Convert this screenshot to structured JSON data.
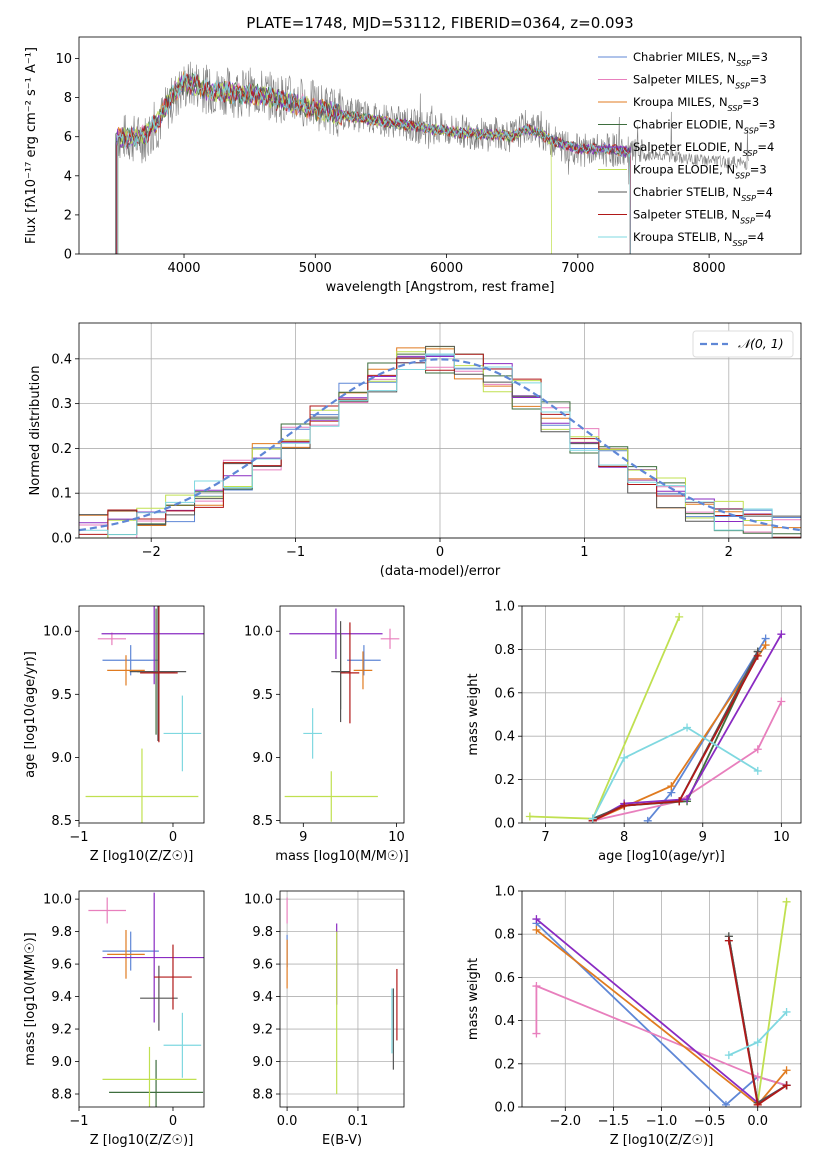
{
  "figure": {
    "title": "PLATE=1748, MJD=53112, FIBERID=0364, z=0.093"
  },
  "series_styles": [
    {
      "name": "Chabrier MILES",
      "nssp": "3",
      "color": "#5f87d6"
    },
    {
      "name": "Salpeter MILES",
      "nssp": "3",
      "color": "#e87fbd"
    },
    {
      "name": "Kroupa MILES",
      "nssp": "3",
      "color": "#e07b20"
    },
    {
      "name": "Chabrier ELODIE",
      "nssp": "3",
      "color": "#3e6e3e"
    },
    {
      "name": "Salpeter ELODIE",
      "nssp": "4",
      "color": "#8a2bc2"
    },
    {
      "name": "Kroupa ELODIE",
      "nssp": "3",
      "color": "#c0e050"
    },
    {
      "name": "Chabrier STELIB",
      "nssp": "4",
      "color": "#555555"
    },
    {
      "name": "Salpeter STELIB",
      "nssp": "4",
      "color": "#b01818"
    },
    {
      "name": "Kroupa STELIB",
      "nssp": "4",
      "color": "#7fd8e0"
    }
  ],
  "chart_data": [
    {
      "id": "spectrum",
      "type": "line",
      "title": "",
      "xlabel": "wavelength [Angstrom, rest frame]",
      "ylabel": "Flux [fλ10⁻¹⁷ erg cm⁻² s⁻¹ A⁻¹]",
      "xlim": [
        3200,
        8700
      ],
      "ylim": [
        0,
        11.1
      ],
      "xticks": [
        4000,
        5000,
        6000,
        7000,
        8000
      ],
      "yticks": [
        0,
        2,
        4,
        6,
        8,
        10
      ],
      "grid": false,
      "legend_position": "top-right",
      "legend_entries": [
        "Chabrier MILES, NSSP=3",
        "Salpeter MILES, NSSP=3",
        "Kroupa MILES, NSSP=3",
        "Chabrier ELODIE, NSSP=3",
        "Salpeter ELODIE, NSSP=4",
        "Kroupa ELODIE, NSSP=3",
        "Chabrier STELIB, NSSP=4",
        "Salpeter STELIB, NSSP=4",
        "Kroupa STELIB, NSSP=4"
      ],
      "data_series": {
        "name": "data",
        "color": "#808080",
        "x": [
          3500,
          3600,
          3700,
          3800,
          3900,
          4000,
          4100,
          4200,
          4300,
          4400,
          4500,
          4600,
          4700,
          4800,
          4900,
          5000,
          5100,
          5200,
          5300,
          5400,
          5500,
          5600,
          5700,
          5800,
          5900,
          6000,
          6100,
          6200,
          6300,
          6400,
          6500,
          6600,
          6700,
          6800,
          6900,
          7000,
          7100,
          7200,
          7300,
          7400,
          7500,
          7600,
          7700,
          7800,
          7900,
          8000,
          8100,
          8200,
          8300
        ],
        "y": [
          6.0,
          5.9,
          5.9,
          6.6,
          7.8,
          8.6,
          8.7,
          8.3,
          8.4,
          8.2,
          8.3,
          8.2,
          8.0,
          7.9,
          7.8,
          7.6,
          7.4,
          7.2,
          7.1,
          7.0,
          6.9,
          6.8,
          6.6,
          6.5,
          6.4,
          6.3,
          6.3,
          6.2,
          6.1,
          6.2,
          6.0,
          6.5,
          6.3,
          5.8,
          5.5,
          5.3,
          5.3,
          5.3,
          5.3,
          5.1,
          5.0,
          5.1,
          5.0,
          4.9,
          4.8,
          4.8,
          4.7,
          4.7,
          4.6
        ]
      },
      "model_series": {
        "x": [
          3480,
          3600,
          3700,
          3800,
          3900,
          4000,
          4100,
          4200,
          4300,
          4400,
          4500,
          4600,
          4700,
          4800,
          4900,
          5000,
          5100,
          5200,
          5300,
          5400,
          5500,
          5600,
          5700,
          5800,
          5900,
          6000,
          6100,
          6200,
          6300,
          6400,
          6500,
          6600,
          6700,
          6800,
          6900,
          7000,
          7100,
          7200,
          7300,
          7400
        ],
        "y": [
          6.0,
          5.9,
          6.1,
          6.8,
          8.0,
          8.8,
          8.6,
          8.3,
          8.3,
          8.2,
          8.2,
          8.1,
          7.9,
          7.8,
          7.6,
          7.4,
          7.3,
          7.1,
          7.0,
          6.9,
          6.8,
          6.7,
          6.6,
          6.5,
          6.4,
          6.3,
          6.2,
          6.2,
          6.1,
          6.1,
          6.0,
          6.4,
          6.2,
          5.8,
          5.6,
          5.4,
          5.4,
          5.4,
          5.3,
          5.2
        ]
      }
    },
    {
      "id": "residuals",
      "type": "line",
      "title": "",
      "xlabel": "(data-model)/error",
      "ylabel": "Normed distribution",
      "xlim": [
        -2.5,
        2.5
      ],
      "ylim": [
        0,
        0.48
      ],
      "xticks": [
        -2,
        -1,
        0,
        1,
        2
      ],
      "yticks": [
        0.0,
        0.1,
        0.2,
        0.3,
        0.4
      ],
      "grid": true,
      "legend_position": "top-right",
      "legend_entries": [
        "𝒩(0, 1)"
      ],
      "bin_edges": [
        -2.5,
        -2.3,
        -2.1,
        -1.9,
        -1.7,
        -1.5,
        -1.3,
        -1.1,
        -0.9,
        -0.7,
        -0.5,
        -0.3,
        -0.1,
        0.1,
        0.3,
        0.5,
        0.7,
        0.9,
        1.1,
        1.3,
        1.5,
        1.7,
        1.9,
        2.1,
        2.3,
        2.5
      ],
      "hist_values": [
        0.02,
        0.03,
        0.05,
        0.07,
        0.1,
        0.14,
        0.18,
        0.22,
        0.27,
        0.32,
        0.36,
        0.39,
        0.4,
        0.39,
        0.36,
        0.32,
        0.27,
        0.22,
        0.17,
        0.13,
        0.1,
        0.07,
        0.05,
        0.03,
        0.02
      ],
      "normal_curve": {
        "name": "𝒩(0, 1)",
        "color": "#5f87d6",
        "dashed": true
      }
    },
    {
      "id": "age-vs-z",
      "type": "scatter",
      "xlabel": "Z [log10(Z/Z☉)]",
      "ylabel": "age [log10(age/yr)]",
      "xlim": [
        -1.0,
        0.33
      ],
      "ylim": [
        8.48,
        10.2
      ],
      "xticks": [
        -1,
        0
      ],
      "yticks": [
        8.5,
        9.0,
        9.5,
        10.0
      ],
      "grid": false,
      "points": [
        {
          "x": -0.45,
          "y": 9.77,
          "xerr": 0.3,
          "yerr": 0.12,
          "color": "#5f87d6"
        },
        {
          "x": -0.65,
          "y": 9.94,
          "xerr": 0.15,
          "yerr": 0.05,
          "color": "#e87fbd"
        },
        {
          "x": -0.5,
          "y": 9.69,
          "xerr": 0.2,
          "yerr": 0.12,
          "color": "#e07b20"
        },
        {
          "x": -0.18,
          "y": 9.68,
          "xerr": 0.2,
          "yerr": 0.5,
          "color": "#3e6e3e"
        },
        {
          "x": -0.2,
          "y": 9.98,
          "xerr": 0.56,
          "yerr": 0.4,
          "color": "#8a2bc2"
        },
        {
          "x": -0.33,
          "y": 8.69,
          "xerr": 0.6,
          "yerr": 0.38,
          "color": "#c0e050"
        },
        {
          "x": -0.16,
          "y": 9.68,
          "xerr": 0.3,
          "yerr": 0.55,
          "color": "#555555"
        },
        {
          "x": -0.15,
          "y": 9.67,
          "xerr": 0.2,
          "yerr": 0.55,
          "color": "#b01818"
        },
        {
          "x": 0.1,
          "y": 9.19,
          "xerr": 0.2,
          "yerr": 0.3,
          "color": "#7fd8e0"
        }
      ]
    },
    {
      "id": "age-vs-mass",
      "type": "scatter",
      "xlabel": "mass [log10(M/M☉)]",
      "ylabel": "",
      "xlim": [
        8.75,
        10.08
      ],
      "ylim": [
        8.48,
        10.2
      ],
      "xticks": [
        9,
        10
      ],
      "yticks": [
        8.5,
        9.0,
        9.5,
        10.0
      ],
      "grid": false,
      "points": [
        {
          "x": 9.65,
          "y": 9.77,
          "xerr": 0.18,
          "yerr": 0.12,
          "color": "#5f87d6"
        },
        {
          "x": 9.93,
          "y": 9.94,
          "xerr": 0.1,
          "yerr": 0.08,
          "color": "#e87fbd"
        },
        {
          "x": 9.64,
          "y": 9.69,
          "xerr": 0.1,
          "yerr": 0.15,
          "color": "#e07b20"
        },
        {
          "x": 9.4,
          "y": 9.68,
          "xerr": 0.05,
          "yerr": 0.3,
          "color": "#3e6e3e"
        },
        {
          "x": 9.35,
          "y": 9.98,
          "xerr": 0.5,
          "yerr": 0.2,
          "color": "#8a2bc2"
        },
        {
          "x": 9.3,
          "y": 8.69,
          "xerr": 0.5,
          "yerr": 0.2,
          "color": "#c0e050"
        },
        {
          "x": 9.4,
          "y": 9.68,
          "xerr": 0.1,
          "yerr": 0.4,
          "color": "#555555"
        },
        {
          "x": 9.5,
          "y": 9.67,
          "xerr": 0.1,
          "yerr": 0.4,
          "color": "#b01818"
        },
        {
          "x": 9.1,
          "y": 9.19,
          "xerr": 0.1,
          "yerr": 0.2,
          "color": "#7fd8e0"
        }
      ]
    },
    {
      "id": "weight-vs-age",
      "type": "line",
      "xlabel": "age [log10(age/yr)]",
      "ylabel": "mass weight",
      "xlim": [
        6.7,
        10.25
      ],
      "ylim": [
        0.0,
        1.0
      ],
      "xticks": [
        7,
        8,
        9,
        10
      ],
      "yticks": [
        0.0,
        0.2,
        0.4,
        0.6,
        0.8,
        1.0
      ],
      "grid": true,
      "series": [
        {
          "name": "Chabrier MILES",
          "x": [
            8.3,
            8.6,
            9.8
          ],
          "y": [
            0.01,
            0.14,
            0.85
          ],
          "color": "#5f87d6"
        },
        {
          "name": "Salpeter MILES",
          "x": [
            7.6,
            8.7,
            9.7,
            10.0
          ],
          "y": [
            0.01,
            0.1,
            0.34,
            0.56
          ],
          "color": "#e87fbd"
        },
        {
          "name": "Kroupa MILES",
          "x": [
            7.6,
            8.6,
            9.8
          ],
          "y": [
            0.01,
            0.17,
            0.82
          ],
          "color": "#e07b20"
        },
        {
          "name": "Chabrier ELODIE",
          "x": [
            7.6,
            8.0,
            8.8,
            9.7
          ],
          "y": [
            0.02,
            0.08,
            0.1,
            0.79
          ],
          "color": "#3e6e3e"
        },
        {
          "name": "Salpeter ELODIE",
          "x": [
            7.6,
            8.0,
            8.8,
            10.0
          ],
          "y": [
            0.01,
            0.09,
            0.11,
            0.87
          ],
          "color": "#8a2bc2"
        },
        {
          "name": "Kroupa ELODIE",
          "x": [
            6.8,
            7.6,
            8.7
          ],
          "y": [
            0.03,
            0.02,
            0.95
          ],
          "color": "#c0e050"
        },
        {
          "name": "Chabrier STELIB",
          "x": [
            7.6,
            8.0,
            8.7,
            9.7
          ],
          "y": [
            0.02,
            0.08,
            0.1,
            0.79
          ],
          "color": "#555555"
        },
        {
          "name": "Salpeter STELIB",
          "x": [
            7.6,
            8.0,
            8.7,
            9.7
          ],
          "y": [
            0.01,
            0.08,
            0.1,
            0.77
          ],
          "color": "#b01818"
        },
        {
          "name": "Kroupa STELIB",
          "x": [
            7.6,
            8.0,
            8.8,
            9.7
          ],
          "y": [
            0.02,
            0.3,
            0.44,
            0.24
          ],
          "color": "#7fd8e0"
        }
      ]
    },
    {
      "id": "mass-vs-z",
      "type": "scatter",
      "xlabel": "Z [log10(Z/Z☉)]",
      "ylabel": "mass [log10(M/M☉)]",
      "xlim": [
        -1.0,
        0.33
      ],
      "ylim": [
        8.72,
        10.05
      ],
      "xticks": [
        -1,
        0
      ],
      "yticks": [
        8.8,
        9.0,
        9.2,
        9.4,
        9.6,
        9.8,
        10.0
      ],
      "grid": false,
      "points": [
        {
          "x": -0.45,
          "y": 9.68,
          "xerr": 0.3,
          "yerr": 0.12,
          "color": "#5f87d6"
        },
        {
          "x": -0.7,
          "y": 9.93,
          "xerr": 0.2,
          "yerr": 0.08,
          "color": "#e87fbd"
        },
        {
          "x": -0.5,
          "y": 9.66,
          "xerr": 0.2,
          "yerr": 0.15,
          "color": "#e07b20"
        },
        {
          "x": -0.18,
          "y": 8.81,
          "xerr": 0.5,
          "yerr": 0.2,
          "color": "#3e6e3e"
        },
        {
          "x": -0.2,
          "y": 9.64,
          "xerr": 0.55,
          "yerr": 0.4,
          "color": "#8a2bc2"
        },
        {
          "x": -0.25,
          "y": 8.89,
          "xerr": 0.5,
          "yerr": 0.2,
          "color": "#c0e050"
        },
        {
          "x": -0.15,
          "y": 9.39,
          "xerr": 0.2,
          "yerr": 0.2,
          "color": "#555555"
        },
        {
          "x": 0.0,
          "y": 9.52,
          "xerr": 0.2,
          "yerr": 0.2,
          "color": "#b01818"
        },
        {
          "x": 0.1,
          "y": 9.1,
          "xerr": 0.2,
          "yerr": 0.2,
          "color": "#7fd8e0"
        }
      ]
    },
    {
      "id": "mass-vs-ebv",
      "type": "scatter",
      "xlabel": "E(B-V)",
      "ylabel": "",
      "xlim": [
        -0.01,
        0.165
      ],
      "ylim": [
        8.72,
        10.05
      ],
      "xticks": [
        0.0,
        0.1
      ],
      "yticks": [
        8.8,
        9.0,
        9.2,
        9.4,
        9.6,
        9.8,
        10.0
      ],
      "grid": true,
      "points": [
        {
          "x": 0.0,
          "y": 9.68,
          "xerr": 0.0,
          "yerr": 0.1,
          "color": "#5f87d6"
        },
        {
          "x": 0.0,
          "y": 9.93,
          "xerr": 0.0,
          "yerr": 0.08,
          "color": "#e87fbd"
        },
        {
          "x": 0.0,
          "y": 9.6,
          "xerr": 0.0,
          "yerr": 0.15,
          "color": "#e07b20"
        },
        {
          "x": 0.07,
          "y": 9.6,
          "xerr": 0.0,
          "yerr": 0.25,
          "color": "#8a2bc2"
        },
        {
          "x": 0.07,
          "y": 9.3,
          "xerr": 0.0,
          "yerr": 0.5,
          "color": "#c0e050"
        },
        {
          "x": 0.15,
          "y": 9.2,
          "xerr": 0.0,
          "yerr": 0.25,
          "color": "#555555"
        },
        {
          "x": 0.155,
          "y": 9.35,
          "xerr": 0.0,
          "yerr": 0.22,
          "color": "#b01818"
        },
        {
          "x": 0.148,
          "y": 9.25,
          "xerr": 0.0,
          "yerr": 0.2,
          "color": "#7fd8e0"
        }
      ]
    },
    {
      "id": "weight-vs-z",
      "type": "line",
      "xlabel": "Z [log10(Z/Z☉)]",
      "ylabel": "mass weight",
      "xlim": [
        -2.45,
        0.45
      ],
      "ylim": [
        0.0,
        1.0
      ],
      "xticks": [
        -2.0,
        -1.5,
        -1.0,
        -0.5,
        0.0
      ],
      "yticks": [
        0.0,
        0.2,
        0.4,
        0.6,
        0.8,
        1.0
      ],
      "grid": true,
      "series": [
        {
          "name": "Chabrier MILES",
          "x": [
            -2.3,
            -0.33,
            0.0,
            0.3
          ],
          "y": [
            0.85,
            0.01,
            0.14,
            0.1
          ],
          "color": "#5f87d6"
        },
        {
          "name": "Salpeter MILES",
          "x": [
            -2.3,
            -2.3,
            0.0,
            0.3
          ],
          "y": [
            0.34,
            0.56,
            0.14,
            0.1
          ],
          "color": "#e87fbd"
        },
        {
          "name": "Kroupa MILES",
          "x": [
            -2.3,
            0.0,
            0.3
          ],
          "y": [
            0.82,
            0.01,
            0.17
          ],
          "color": "#e07b20"
        },
        {
          "name": "Chabrier ELODIE",
          "x": [
            -0.3,
            0.0,
            0.3
          ],
          "y": [
            0.79,
            0.02,
            0.1
          ],
          "color": "#3e6e3e"
        },
        {
          "name": "Salpeter ELODIE",
          "x": [
            -2.3,
            0.0,
            0.3
          ],
          "y": [
            0.87,
            0.02,
            0.1
          ],
          "color": "#8a2bc2"
        },
        {
          "name": "Kroupa ELODIE",
          "x": [
            0.0,
            0.3
          ],
          "y": [
            0.02,
            0.95
          ],
          "color": "#c0e050"
        },
        {
          "name": "Chabrier STELIB",
          "x": [
            -0.3,
            0.0,
            0.3
          ],
          "y": [
            0.79,
            0.02,
            0.1
          ],
          "color": "#555555"
        },
        {
          "name": "Salpeter STELIB",
          "x": [
            -0.3,
            0.0,
            0.3
          ],
          "y": [
            0.77,
            0.01,
            0.1
          ],
          "color": "#b01818"
        },
        {
          "name": "Kroupa STELIB",
          "x": [
            -0.3,
            0.0,
            0.3
          ],
          "y": [
            0.24,
            0.3,
            0.44
          ],
          "color": "#7fd8e0"
        }
      ]
    }
  ]
}
